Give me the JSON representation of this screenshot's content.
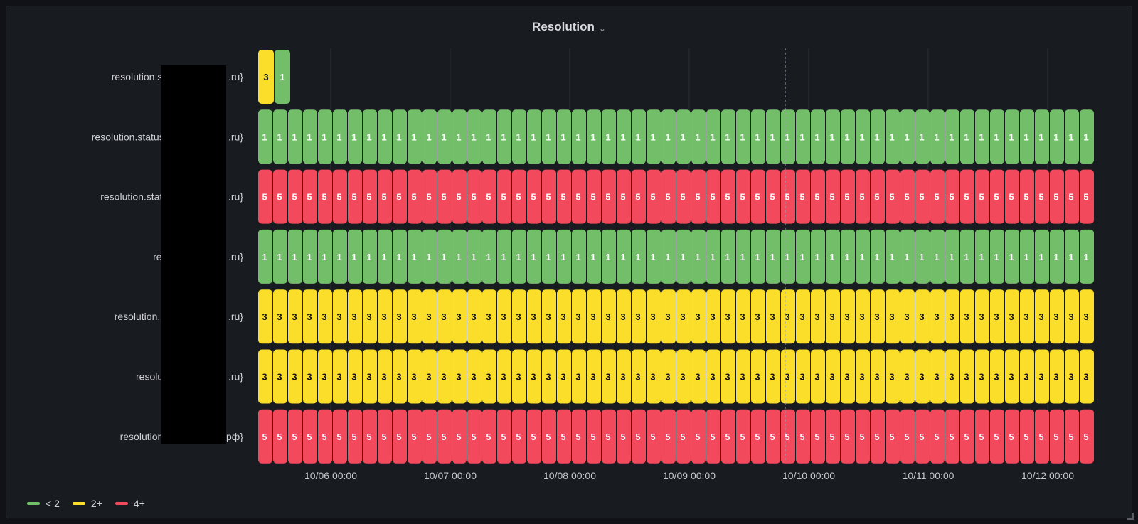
{
  "panel": {
    "title": "Resolution"
  },
  "legend": [
    {
      "label": "< 2",
      "color": "#73bf69"
    },
    {
      "label": "2+",
      "color": "#fade2a"
    },
    {
      "label": "4+",
      "color": "#f2495c"
    }
  ],
  "chart_data": {
    "type": "state-timeline",
    "grid": true,
    "x_ticks": [
      "10/06 00:00",
      "10/07 00:00",
      "10/08 00:00",
      "10/09 00:00",
      "10/10 00:00",
      "10/11 00:00",
      "10/12 00:00"
    ],
    "thresholds": [
      {
        "label": "< 2",
        "min": null,
        "max": 2,
        "color": "#73bf69"
      },
      {
        "label": "2+",
        "min": 2,
        "max": 4,
        "color": "#fade2a"
      },
      {
        "label": "4+",
        "min": 4,
        "max": null,
        "color": "#f2495c"
      }
    ],
    "rows": [
      {
        "label": "resolution.status {domain: ",
        "label_suffix": ".ru}",
        "segments": [
          "3",
          "1"
        ]
      },
      {
        "label": "resolution.status {domain: mar",
        "label_suffix": ".ru}",
        "value": "1",
        "count": 56
      },
      {
        "label": "resolution.status {domain: m",
        "label_suffix": ".ru}",
        "value": "5",
        "count": 56
      },
      {
        "label": "resolution.status",
        "label_suffix": ".ru}",
        "value": "1",
        "count": 56
      },
      {
        "label": "resolution.status {domain",
        "label_suffix": ".ru}",
        "value": "3",
        "count": 56
      },
      {
        "label": "resolution.status {do",
        "label_suffix": ".ru}",
        "value": "3",
        "count": 56
      },
      {
        "label": "resolution.status {doma",
        "label_suffix": "рф}",
        "value": "5",
        "count": 56
      }
    ]
  }
}
